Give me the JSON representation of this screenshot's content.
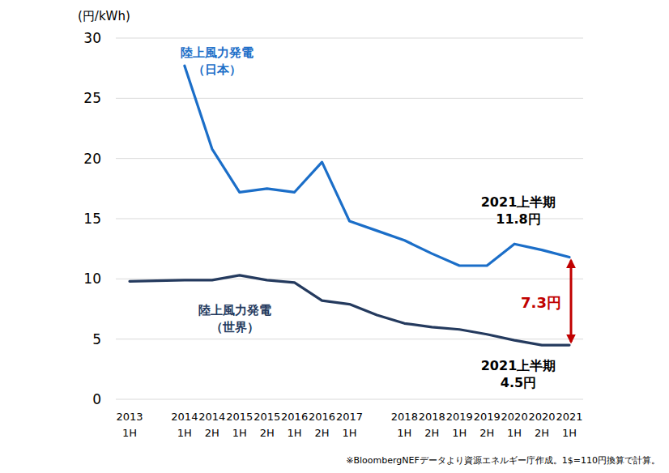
{
  "chart_data": {
    "type": "line",
    "y_label": "(円/kWh)",
    "categories": [
      "2013 1H",
      null,
      "2014 1H",
      "2014 2H",
      "2015 1H",
      "2015 2H",
      "2016 1H",
      "2016 2H",
      "2017 1H",
      null,
      "2018 1H",
      "2018 2H",
      "2019 1H",
      "2019 2H",
      "2020 1H",
      "2020 2H",
      "2021 1H"
    ],
    "series": [
      {
        "name": "陸上風力発電（日本）",
        "color": "#1b6ec8",
        "values": [
          null,
          null,
          27.7,
          20.8,
          17.2,
          17.5,
          17.2,
          19.7,
          14.8,
          14.0,
          13.2,
          12.1,
          11.1,
          11.1,
          12.9,
          12.4,
          11.8
        ]
      },
      {
        "name": "陸上風力発電（世界）",
        "color": "#243a5e",
        "values": [
          9.8,
          9.85,
          9.9,
          9.9,
          10.3,
          9.9,
          9.7,
          8.2,
          7.9,
          7.0,
          6.3,
          6.0,
          5.8,
          5.4,
          4.9,
          4.5,
          4.5
        ]
      }
    ],
    "ylim": [
      0,
      30
    ],
    "yticks": [
      0,
      5,
      10,
      15,
      20,
      25,
      30
    ],
    "grid": true,
    "annotations": [
      {
        "lines": [
          "2021上半期",
          "11.8円"
        ],
        "color": "#000000"
      },
      {
        "lines": [
          "2021上半期",
          "4.5円"
        ],
        "color": "#000000"
      },
      {
        "lines": [
          "7.3円"
        ],
        "color": "#c00000"
      }
    ],
    "note": "※BloombergNEFデータより資源エネルギー庁作成。1$=110円換算で計算。"
  }
}
